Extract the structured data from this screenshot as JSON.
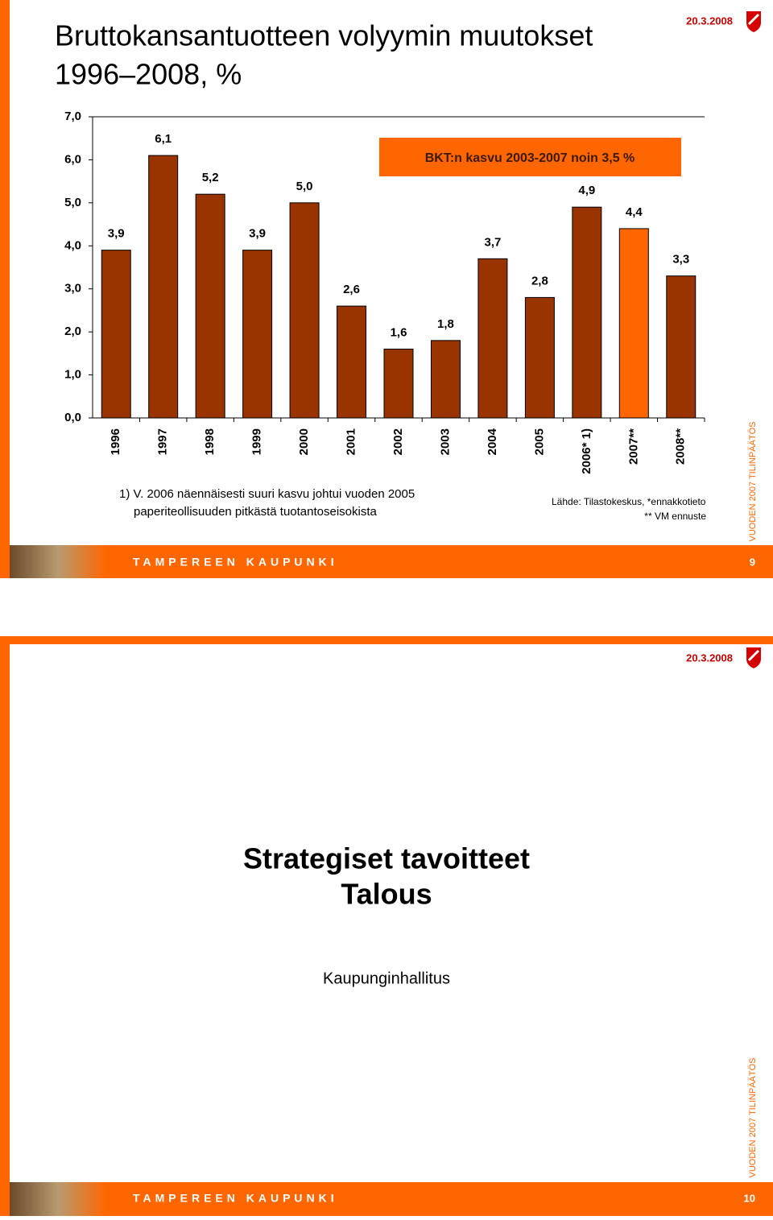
{
  "slide1": {
    "title": [
      "Bruttokansantuotteen volyymin muutokset",
      "1996–2008, %"
    ],
    "date": "20.3.2008",
    "side_label": "VUODEN 2007 TILINPÄÄTÖS",
    "footer": "TAMPEREEN KAUPUNKI",
    "page": "9",
    "notes": [
      "1) V. 2006 näennäisesti suuri kasvu johtui vuoden 2005",
      "paperiteollisuuden pitkästä tuotantoseisokista"
    ],
    "source": [
      "Lähde: Tilastokeskus, *ennakkotieto",
      "** VM ennuste"
    ]
  },
  "chart_data": {
    "type": "bar",
    "categories": [
      "1996",
      "1997",
      "1998",
      "1999",
      "2000",
      "2001",
      "2002",
      "2003",
      "2004",
      "2005",
      "2006* 1)",
      "2007**",
      "2008**"
    ],
    "values": [
      3.9,
      6.1,
      5.2,
      3.9,
      5.0,
      2.6,
      1.6,
      1.8,
      3.7,
      2.8,
      4.9,
      4.4,
      3.3
    ],
    "value_labels": [
      "3,9",
      "6,1",
      "5,2",
      "3,9",
      "5,0",
      "2,6",
      "1,6",
      "1,8",
      "3,7",
      "2,8",
      "4,9",
      "4,4",
      "3,3"
    ],
    "colors": [
      "#993300",
      "#993300",
      "#993300",
      "#993300",
      "#993300",
      "#993300",
      "#993300",
      "#993300",
      "#993300",
      "#993300",
      "#993300",
      "#ff6600",
      "#993300"
    ],
    "ylim": [
      0,
      7
    ],
    "yticks": [
      {
        "value": 0,
        "label": "0,0"
      },
      {
        "value": 1,
        "label": "1,0"
      },
      {
        "value": 2,
        "label": "2,0"
      },
      {
        "value": 3,
        "label": "3,0"
      },
      {
        "value": 4,
        "label": "4,0"
      },
      {
        "value": 5,
        "label": "5,0"
      },
      {
        "value": 6,
        "label": "6,0"
      },
      {
        "value": 7,
        "label": "7,0"
      }
    ],
    "grid": false,
    "annotation": "BKT:n kasvu 2003-2007 noin 3,5 %"
  },
  "slide2": {
    "date": "20.3.2008",
    "title": [
      "Strategiset tavoitteet",
      "Talous"
    ],
    "subtitle": "Kaupunginhallitus",
    "side_label": "VUODEN 2007 TILINPÄÄTÖS",
    "footer": "TAMPEREEN KAUPUNKI",
    "page": "10"
  }
}
